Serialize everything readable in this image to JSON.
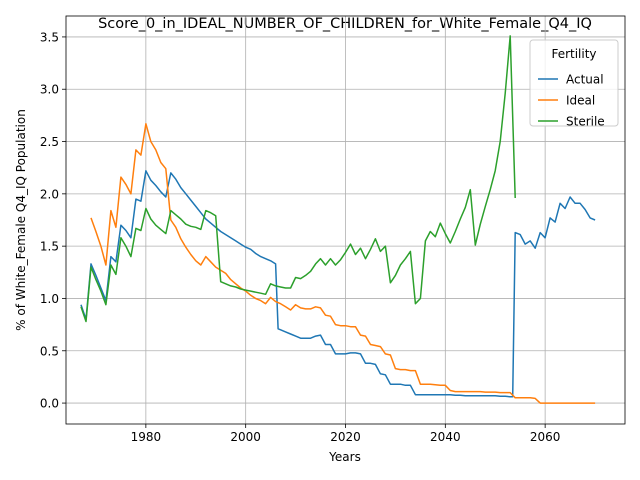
{
  "chart_data": {
    "type": "line",
    "title": "Score_0_in_IDEAL_NUMBER_OF_CHILDREN_for_White_Female_Q4_IQ",
    "xlabel": "Years",
    "ylabel": "% of White_Female Q4_IQ Population",
    "xlim": [
      1964,
      2076
    ],
    "ylim": [
      -0.2,
      3.7
    ],
    "xticks": [
      1980,
      2000,
      2020,
      2040,
      2060
    ],
    "yticks": [
      0.0,
      0.5,
      1.0,
      1.5,
      2.0,
      2.5,
      3.0,
      3.5
    ],
    "xtick_labels": [
      "1980",
      "2000",
      "2020",
      "2040",
      "2060"
    ],
    "ytick_labels": [
      "0.0",
      "0.5",
      "1.0",
      "1.5",
      "2.0",
      "2.5",
      "3.0",
      "3.5"
    ],
    "grid": true,
    "legend": {
      "title": "Fertility",
      "position": "top-right"
    },
    "series": [
      {
        "name": "Actual",
        "color": "#1f77b4",
        "points": [
          [
            1967,
            0.94
          ],
          [
            1968,
            0.8
          ],
          [
            1969,
            1.33
          ],
          [
            1970,
            1.22
          ],
          [
            1971,
            1.1
          ],
          [
            1972,
            0.98
          ],
          [
            1973,
            1.4
          ],
          [
            1974,
            1.35
          ],
          [
            1975,
            1.7
          ],
          [
            1976,
            1.65
          ],
          [
            1977,
            1.58
          ],
          [
            1978,
            1.95
          ],
          [
            1979,
            1.93
          ],
          [
            1980,
            2.22
          ],
          [
            1981,
            2.13
          ],
          [
            1982,
            2.08
          ],
          [
            1983,
            2.02
          ],
          [
            1984,
            1.97
          ],
          [
            1985,
            2.2
          ],
          [
            1986,
            2.14
          ],
          [
            1987,
            2.06
          ],
          [
            1988,
            2.0
          ],
          [
            1989,
            1.94
          ],
          [
            1990,
            1.88
          ],
          [
            1991,
            1.82
          ],
          [
            1992,
            1.76
          ],
          [
            1993,
            1.72
          ],
          [
            1994,
            1.68
          ],
          [
            1995,
            1.64
          ],
          [
            1996,
            1.61
          ],
          [
            1997,
            1.58
          ],
          [
            1998,
            1.55
          ],
          [
            1999,
            1.52
          ],
          [
            2000,
            1.49
          ],
          [
            2001,
            1.47
          ],
          [
            2002,
            1.43
          ],
          [
            2003,
            1.4
          ],
          [
            2004,
            1.38
          ],
          [
            2005,
            1.36
          ],
          [
            2006,
            1.33
          ],
          [
            2006.5,
            0.71
          ],
          [
            2007,
            0.7
          ],
          [
            2008,
            0.68
          ],
          [
            2009,
            0.66
          ],
          [
            2010,
            0.64
          ],
          [
            2011,
            0.62
          ],
          [
            2012,
            0.62
          ],
          [
            2013,
            0.62
          ],
          [
            2014,
            0.64
          ],
          [
            2015,
            0.65
          ],
          [
            2016,
            0.56
          ],
          [
            2017,
            0.56
          ],
          [
            2018,
            0.47
          ],
          [
            2019,
            0.47
          ],
          [
            2020,
            0.47
          ],
          [
            2021,
            0.48
          ],
          [
            2022,
            0.48
          ],
          [
            2023,
            0.47
          ],
          [
            2024,
            0.38
          ],
          [
            2025,
            0.38
          ],
          [
            2026,
            0.37
          ],
          [
            2027,
            0.28
          ],
          [
            2028,
            0.27
          ],
          [
            2029,
            0.18
          ],
          [
            2030,
            0.18
          ],
          [
            2031,
            0.18
          ],
          [
            2032,
            0.17
          ],
          [
            2033,
            0.17
          ],
          [
            2034,
            0.08
          ],
          [
            2035,
            0.08
          ],
          [
            2036,
            0.08
          ],
          [
            2037,
            0.08
          ],
          [
            2038,
            0.08
          ],
          [
            2039,
            0.08
          ],
          [
            2040,
            0.08
          ],
          [
            2041,
            0.08
          ],
          [
            2042,
            0.075
          ],
          [
            2043,
            0.075
          ],
          [
            2044,
            0.07
          ],
          [
            2045,
            0.07
          ],
          [
            2046,
            0.07
          ],
          [
            2047,
            0.07
          ],
          [
            2048,
            0.07
          ],
          [
            2049,
            0.07
          ],
          [
            2050,
            0.07
          ],
          [
            2051,
            0.065
          ],
          [
            2052,
            0.065
          ],
          [
            2053,
            0.06
          ],
          [
            2053.5,
            0.06
          ],
          [
            2054,
            1.63
          ],
          [
            2055,
            1.61
          ],
          [
            2056,
            1.52
          ],
          [
            2057,
            1.55
          ],
          [
            2058,
            1.48
          ],
          [
            2059,
            1.63
          ],
          [
            2060,
            1.58
          ],
          [
            2061,
            1.77
          ],
          [
            2062,
            1.73
          ],
          [
            2063,
            1.91
          ],
          [
            2064,
            1.86
          ],
          [
            2065,
            1.97
          ],
          [
            2066,
            1.91
          ],
          [
            2067,
            1.91
          ],
          [
            2068,
            1.85
          ],
          [
            2069,
            1.77
          ],
          [
            2070,
            1.75
          ]
        ]
      },
      {
        "name": "Ideal",
        "color": "#ff7f0e",
        "points": [
          [
            1969,
            1.77
          ],
          [
            1970,
            1.64
          ],
          [
            1971,
            1.5
          ],
          [
            1972,
            1.32
          ],
          [
            1973,
            1.84
          ],
          [
            1974,
            1.68
          ],
          [
            1975,
            2.16
          ],
          [
            1976,
            2.09
          ],
          [
            1977,
            2.0
          ],
          [
            1978,
            2.42
          ],
          [
            1979,
            2.37
          ],
          [
            1980,
            2.67
          ],
          [
            1981,
            2.5
          ],
          [
            1982,
            2.42
          ],
          [
            1983,
            2.3
          ],
          [
            1984,
            2.24
          ],
          [
            1985,
            1.75
          ],
          [
            1986,
            1.68
          ],
          [
            1987,
            1.57
          ],
          [
            1988,
            1.49
          ],
          [
            1989,
            1.42
          ],
          [
            1990,
            1.36
          ],
          [
            1991,
            1.32
          ],
          [
            1992,
            1.4
          ],
          [
            1993,
            1.35
          ],
          [
            1994,
            1.3
          ],
          [
            1995,
            1.27
          ],
          [
            1996,
            1.24
          ],
          [
            1997,
            1.18
          ],
          [
            1998,
            1.14
          ],
          [
            1999,
            1.1
          ],
          [
            2000,
            1.07
          ],
          [
            2001,
            1.03
          ],
          [
            2002,
            1.0
          ],
          [
            2003,
            0.98
          ],
          [
            2004,
            0.95
          ],
          [
            2005,
            1.01
          ],
          [
            2006,
            0.97
          ],
          [
            2007,
            0.95
          ],
          [
            2008,
            0.92
          ],
          [
            2009,
            0.89
          ],
          [
            2010,
            0.94
          ],
          [
            2011,
            0.91
          ],
          [
            2012,
            0.9
          ],
          [
            2013,
            0.9
          ],
          [
            2014,
            0.92
          ],
          [
            2015,
            0.91
          ],
          [
            2016,
            0.84
          ],
          [
            2017,
            0.83
          ],
          [
            2018,
            0.75
          ],
          [
            2019,
            0.74
          ],
          [
            2020,
            0.74
          ],
          [
            2021,
            0.73
          ],
          [
            2022,
            0.73
          ],
          [
            2023,
            0.65
          ],
          [
            2024,
            0.64
          ],
          [
            2025,
            0.56
          ],
          [
            2026,
            0.55
          ],
          [
            2027,
            0.54
          ],
          [
            2028,
            0.47
          ],
          [
            2029,
            0.46
          ],
          [
            2030,
            0.33
          ],
          [
            2031,
            0.32
          ],
          [
            2032,
            0.32
          ],
          [
            2033,
            0.31
          ],
          [
            2034,
            0.31
          ],
          [
            2035,
            0.18
          ],
          [
            2036,
            0.18
          ],
          [
            2037,
            0.18
          ],
          [
            2038,
            0.175
          ],
          [
            2039,
            0.17
          ],
          [
            2040,
            0.17
          ],
          [
            2041,
            0.12
          ],
          [
            2042,
            0.11
          ],
          [
            2043,
            0.11
          ],
          [
            2044,
            0.11
          ],
          [
            2045,
            0.11
          ],
          [
            2046,
            0.11
          ],
          [
            2047,
            0.11
          ],
          [
            2048,
            0.105
          ],
          [
            2049,
            0.105
          ],
          [
            2050,
            0.105
          ],
          [
            2051,
            0.1
          ],
          [
            2052,
            0.1
          ],
          [
            2053,
            0.1
          ],
          [
            2054,
            0.05
          ],
          [
            2055,
            0.05
          ],
          [
            2056,
            0.05
          ],
          [
            2057,
            0.05
          ],
          [
            2058,
            0.045
          ],
          [
            2059,
            0.0
          ],
          [
            2060,
            0.0
          ],
          [
            2062,
            0.0
          ],
          [
            2064,
            0.0
          ],
          [
            2066,
            0.0
          ],
          [
            2068,
            0.0
          ],
          [
            2070,
            0.0
          ]
        ]
      },
      {
        "name": "Sterile",
        "color": "#2ca02c",
        "points": [
          [
            1967,
            0.92
          ],
          [
            1968,
            0.78
          ],
          [
            1969,
            1.3
          ],
          [
            1970,
            1.18
          ],
          [
            1971,
            1.07
          ],
          [
            1972,
            0.94
          ],
          [
            1973,
            1.32
          ],
          [
            1974,
            1.23
          ],
          [
            1975,
            1.58
          ],
          [
            1976,
            1.5
          ],
          [
            1977,
            1.4
          ],
          [
            1978,
            1.67
          ],
          [
            1979,
            1.65
          ],
          [
            1980,
            1.86
          ],
          [
            1981,
            1.76
          ],
          [
            1982,
            1.7
          ],
          [
            1983,
            1.66
          ],
          [
            1984,
            1.62
          ],
          [
            1985,
            1.84
          ],
          [
            1986,
            1.8
          ],
          [
            1987,
            1.76
          ],
          [
            1988,
            1.71
          ],
          [
            1989,
            1.69
          ],
          [
            1990,
            1.68
          ],
          [
            1991,
            1.66
          ],
          [
            1992,
            1.84
          ],
          [
            1993,
            1.82
          ],
          [
            1994,
            1.79
          ],
          [
            1995,
            1.16
          ],
          [
            1996,
            1.14
          ],
          [
            1997,
            1.12
          ],
          [
            1998,
            1.11
          ],
          [
            1999,
            1.09
          ],
          [
            2000,
            1.08
          ],
          [
            2001,
            1.07
          ],
          [
            2002,
            1.06
          ],
          [
            2003,
            1.05
          ],
          [
            2004,
            1.04
          ],
          [
            2005,
            1.14
          ],
          [
            2006,
            1.12
          ],
          [
            2007,
            1.11
          ],
          [
            2008,
            1.1
          ],
          [
            2009,
            1.1
          ],
          [
            2010,
            1.2
          ],
          [
            2011,
            1.19
          ],
          [
            2012,
            1.22
          ],
          [
            2013,
            1.26
          ],
          [
            2014,
            1.33
          ],
          [
            2015,
            1.38
          ],
          [
            2016,
            1.32
          ],
          [
            2017,
            1.38
          ],
          [
            2018,
            1.32
          ],
          [
            2019,
            1.37
          ],
          [
            2020,
            1.44
          ],
          [
            2021,
            1.52
          ],
          [
            2022,
            1.42
          ],
          [
            2023,
            1.48
          ],
          [
            2024,
            1.38
          ],
          [
            2025,
            1.47
          ],
          [
            2026,
            1.57
          ],
          [
            2027,
            1.45
          ],
          [
            2028,
            1.5
          ],
          [
            2029,
            1.15
          ],
          [
            2030,
            1.22
          ],
          [
            2031,
            1.32
          ],
          [
            2032,
            1.38
          ],
          [
            2033,
            1.45
          ],
          [
            2034,
            0.95
          ],
          [
            2035,
            1.0
          ],
          [
            2036,
            1.55
          ],
          [
            2037,
            1.64
          ],
          [
            2038,
            1.59
          ],
          [
            2039,
            1.72
          ],
          [
            2040,
            1.62
          ],
          [
            2041,
            1.53
          ],
          [
            2042,
            1.64
          ],
          [
            2043,
            1.76
          ],
          [
            2044,
            1.87
          ],
          [
            2045,
            2.04
          ],
          [
            2046,
            1.51
          ],
          [
            2047,
            1.71
          ],
          [
            2048,
            1.88
          ],
          [
            2049,
            2.04
          ],
          [
            2050,
            2.22
          ],
          [
            2051,
            2.5
          ],
          [
            2052,
            2.96
          ],
          [
            2053,
            3.51
          ],
          [
            2054,
            1.96
          ]
        ]
      }
    ]
  }
}
